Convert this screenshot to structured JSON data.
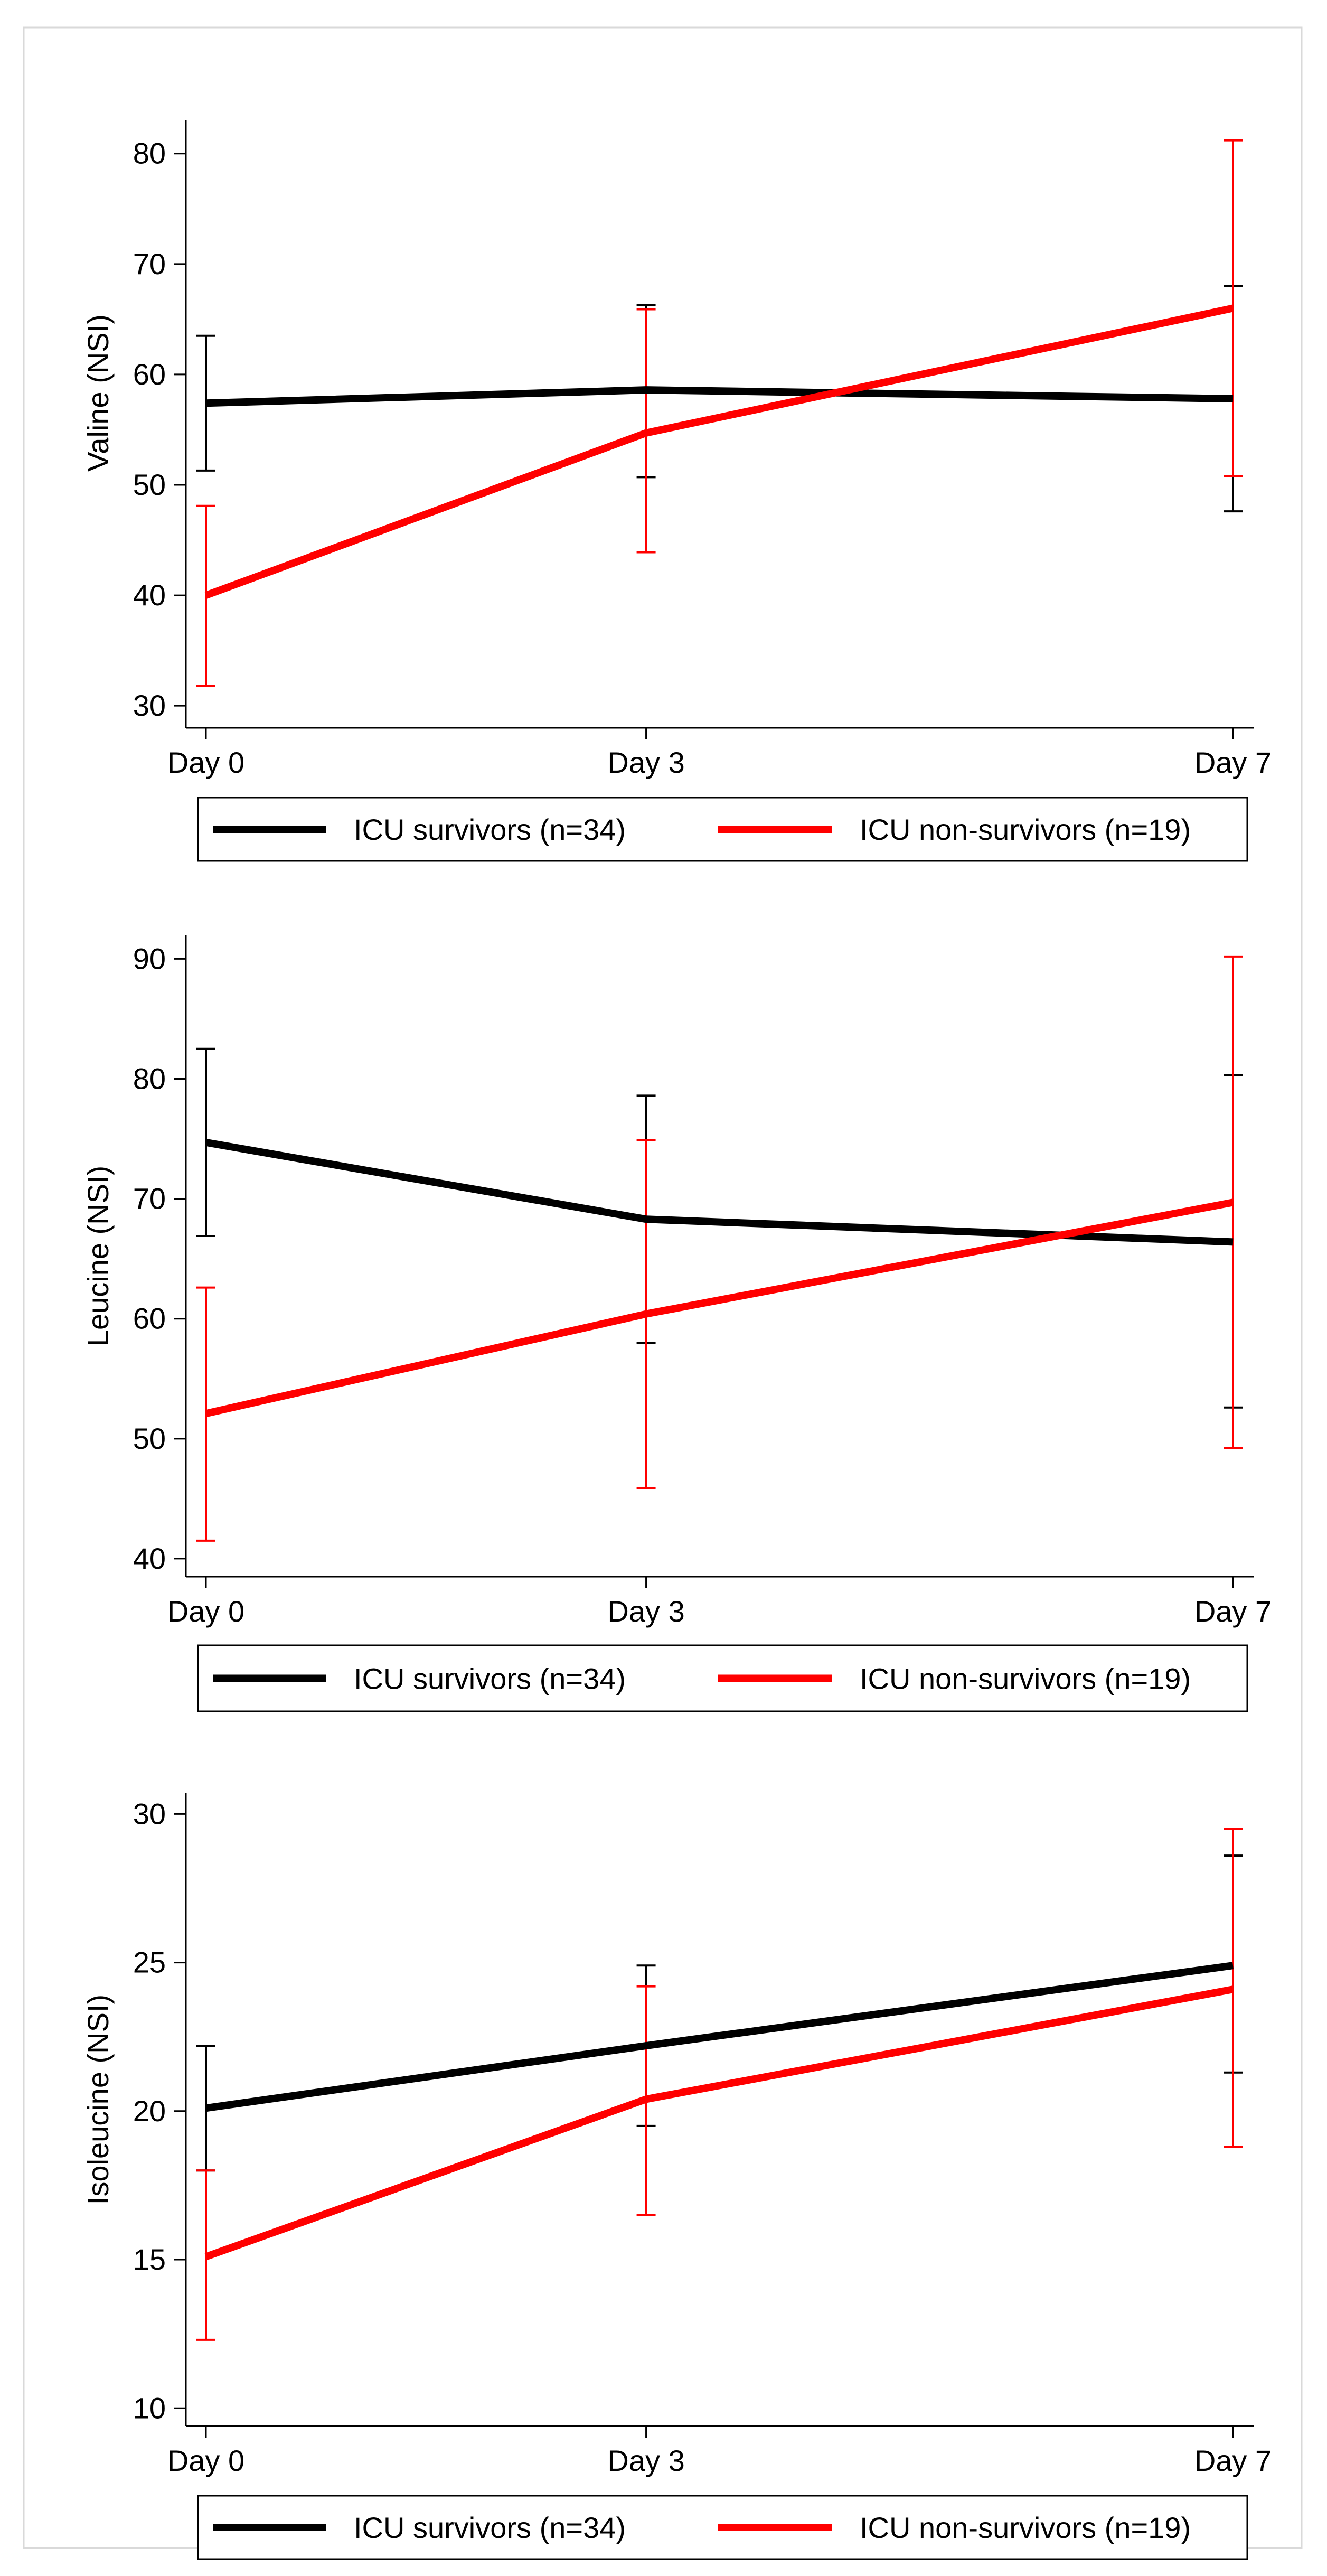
{
  "chart_data": [
    {
      "type": "line",
      "ylabel": "Valine (NSI)",
      "xlabel": "",
      "categories": [
        "Day 0",
        "Day 3",
        "Day 7"
      ],
      "x": [
        0,
        3,
        7
      ],
      "ylim": [
        28,
        83
      ],
      "yticks": [
        30,
        40,
        50,
        60,
        70,
        80
      ],
      "series": [
        {
          "name": "ICU survivors (n=34)",
          "color": "#000000",
          "values": [
            57.4,
            58.6,
            57.8
          ],
          "err_low": [
            51.3,
            50.7,
            47.6
          ],
          "err_high": [
            63.5,
            66.3,
            68.0
          ]
        },
        {
          "name": "ICU non-survivors (n=19)",
          "color": "#ff0000",
          "values": [
            40.0,
            54.7,
            66.0
          ],
          "err_low": [
            31.8,
            43.9,
            50.8
          ],
          "err_high": [
            48.1,
            65.9,
            81.2
          ]
        }
      ]
    },
    {
      "type": "line",
      "ylabel": "Leucine (NSI)",
      "xlabel": "",
      "categories": [
        "Day 0",
        "Day 3",
        "Day 7"
      ],
      "x": [
        0,
        3,
        7
      ],
      "ylim": [
        38.5,
        92
      ],
      "yticks": [
        40,
        50,
        60,
        70,
        80,
        90
      ],
      "series": [
        {
          "name": "ICU survivors (n=34)",
          "color": "#000000",
          "values": [
            74.7,
            68.3,
            66.4
          ],
          "err_low": [
            66.9,
            58.0,
            52.6
          ],
          "err_high": [
            82.5,
            78.6,
            80.3
          ]
        },
        {
          "name": "ICU non-survivors (n=19)",
          "color": "#ff0000",
          "values": [
            52.1,
            60.4,
            69.7
          ],
          "err_low": [
            41.5,
            45.9,
            49.2
          ],
          "err_high": [
            62.6,
            74.9,
            90.2
          ]
        }
      ]
    },
    {
      "type": "line",
      "ylabel": "Isoleucine (NSI)",
      "xlabel": "",
      "categories": [
        "Day 0",
        "Day 3",
        "Day 7"
      ],
      "x": [
        0,
        3,
        7
      ],
      "ylim": [
        9.4,
        30.7
      ],
      "yticks": [
        10,
        15,
        20,
        25,
        30
      ],
      "series": [
        {
          "name": "ICU survivors (n=34)",
          "color": "#000000",
          "values": [
            20.1,
            22.2,
            24.9
          ],
          "err_low": [
            18.0,
            19.5,
            21.3
          ],
          "err_high": [
            22.2,
            24.9,
            28.6
          ]
        },
        {
          "name": "ICU non-survivors (n=19)",
          "color": "#ff0000",
          "values": [
            15.1,
            20.4,
            24.1
          ],
          "err_low": [
            12.3,
            16.5,
            18.8
          ],
          "err_high": [
            18.0,
            24.2,
            29.5
          ]
        }
      ]
    }
  ],
  "legend": {
    "items": [
      {
        "label": "ICU survivors (n=34)",
        "color": "#000000"
      },
      {
        "label": "ICU non-survivors (n=19)",
        "color": "#ff0000"
      }
    ]
  }
}
